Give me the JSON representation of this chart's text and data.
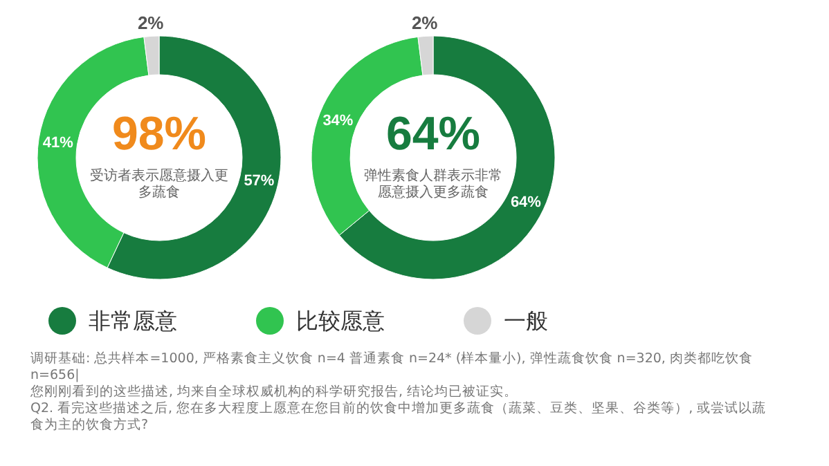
{
  "chart_data": [
    {
      "type": "donut",
      "categories": [
        "非常愿意",
        "比较愿意",
        "一般"
      ],
      "values": [
        57,
        41,
        2
      ],
      "colors": [
        "#177c3f",
        "#31c450",
        "#d6d6d6"
      ],
      "value_labels": [
        "57%",
        "41%",
        "2%"
      ],
      "legend": "bottom",
      "annotations": [
        "98%",
        "受访者表示愿意摄入更多蔬食",
        "调研基础: 总共样本=1000, 严格素食主义饮食 n=4 普通素食 n=24* (样本量小), 弹性蔬食饮食 n=320, 肉类都吃饮食 n=656|",
        "您刚刚看到的这些描述, 均来自全球权威机构的科学研究报告, 结论均已被证实。",
        "Q2. 看完这些描述之后, 您在多大程度上愿意在您目前的饮食中增加更多蔬食（蔬菜、豆类、坚果、谷类等）, 或尝试以蔬食为主的饮食方式?"
      ]
    },
    {
      "type": "donut",
      "categories": [
        null,
        null,
        null
      ],
      "values": [
        64,
        34,
        2
      ],
      "colors": [
        "#177c3f",
        "#31c450",
        "#d6d6d6"
      ],
      "value_labels": [
        "64%",
        "34%",
        "2%"
      ],
      "annotations": [
        "64%",
        "弹性素食人群表示非常愿意摄入更多蔬食"
      ]
    }
  ]
}
